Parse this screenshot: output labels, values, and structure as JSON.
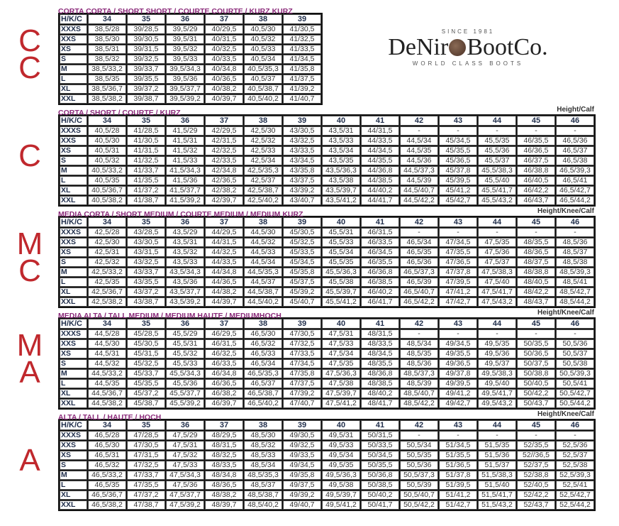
{
  "logo": {
    "since": "SINCE 1981",
    "brand_left": "DeNir",
    "brand_right": "BootCo.",
    "tagline": "WORLD CLASS BOOTS"
  },
  "side_labels": [
    {
      "letters": [
        "C",
        "C"
      ]
    },
    {
      "letters": [
        "C"
      ]
    },
    {
      "letters": [
        "M",
        "C"
      ]
    },
    {
      "letters": [
        "M",
        "A"
      ]
    },
    {
      "letters": [
        "A"
      ]
    }
  ],
  "colors": {
    "title": "#8b2a7a",
    "side_label": "#c0282d",
    "header": "#1f2d4a"
  },
  "tables": [
    {
      "title": "CORTA CORTA / SHORT SHORT / COURTE COURTE / KURZ KURZ",
      "unit": "",
      "corner": "H/K/C",
      "columns": [
        "34",
        "35",
        "36",
        "37",
        "38",
        "39"
      ],
      "rows": [
        {
          "label": "XXXS",
          "cells": [
            "38,5/28",
            "39/28,5",
            "39,5/29",
            "40/29,5",
            "40,5/30",
            "41/30,5"
          ]
        },
        {
          "label": "XXS",
          "cells": [
            "38,5/30",
            "39/30,5",
            "39,5/31",
            "40/31,5",
            "40,5/32",
            "41/32,5"
          ]
        },
        {
          "label": "XS",
          "cells": [
            "38,5/31",
            "39/31,5",
            "39,5/32",
            "40/32,5",
            "40,5/33",
            "41/33,5"
          ]
        },
        {
          "label": "S",
          "cells": [
            "38,5/32",
            "39/32,5",
            "39,5/33",
            "40/33,5",
            "40,5/34",
            "41/34,5"
          ]
        },
        {
          "label": "M",
          "cells": [
            "38,5/33,2",
            "39/33,7",
            "39,5/34,3",
            "40/34,8",
            "40,5/35,3",
            "41/35,8"
          ]
        },
        {
          "label": "L",
          "cells": [
            "38,5/35",
            "39/35,5",
            "39,5/36",
            "40/36,5",
            "40,5/37",
            "41/37,5"
          ]
        },
        {
          "label": "XL",
          "cells": [
            "38,5/36,7",
            "39/37,2",
            "39,5/37,7",
            "40/38,2",
            "40,5/38,7",
            "41/39,2"
          ]
        },
        {
          "label": "XXL",
          "cells": [
            "38,5/38,2",
            "39/38,7",
            "39,5/39,2",
            "40/39,7",
            "40,5/40,2",
            "41/40,7"
          ]
        }
      ]
    },
    {
      "title": "CORTA / SHORT / COURTE / KURZ",
      "unit": "Height/Calf",
      "corner": "H/K/C",
      "columns": [
        "34",
        "35",
        "36",
        "37",
        "38",
        "39",
        "40",
        "41",
        "42",
        "43",
        "44",
        "45",
        "46"
      ],
      "rows": [
        {
          "label": "XXXS",
          "cells": [
            "40,5/28",
            "41/28,5",
            "41,5/29",
            "42/29,5",
            "42,5/30",
            "43/30,5",
            "43,5/31",
            "44/31,5",
            "-",
            "-",
            "-",
            "-",
            "-"
          ]
        },
        {
          "label": "XXS",
          "cells": [
            "40,5/30",
            "41/30,5",
            "41,5/31",
            "42/31,5",
            "42,5/32",
            "43/32,5",
            "43,5/33",
            "44/33,5",
            "44,5/34",
            "45/34,5",
            "45,5/35",
            "46/35,5",
            "46,5/36"
          ]
        },
        {
          "label": "XS",
          "cells": [
            "40,5/31",
            "41/31,5",
            "41,5/32",
            "42/32,5",
            "42,5/33",
            "43/33,5",
            "43,5/34",
            "44/34,5",
            "44,5/35",
            "45/35,5",
            "45,5/36",
            "46/36,5",
            "46,5/37"
          ]
        },
        {
          "label": "S",
          "cells": [
            "40,5/32",
            "41/32,5",
            "41,5/33",
            "42/33,5",
            "42,5/34",
            "43/34,5",
            "43,5/35",
            "44/35,5",
            "44,5/36",
            "45/36,5",
            "45,5/37",
            "46/37,5",
            "46,5/38"
          ]
        },
        {
          "label": "M",
          "cells": [
            "40,5/33,2",
            "41/33,7",
            "41,5/34,3",
            "42/34,8",
            "42,5/35,3",
            "43/35,8",
            "43,5/36,3",
            "44/36,8",
            "44,5/37,3",
            "45/37,8",
            "45,5/38,3",
            "46/38,8",
            "46,5/39,3"
          ]
        },
        {
          "label": "L",
          "cells": [
            "40,5/35",
            "41/35,5",
            "41,5/36",
            "42/36,5",
            "42,5/37",
            "43/37,5",
            "43,5/38",
            "44/38,5",
            "44,5/39",
            "45/39,5",
            "45,5/40",
            "46/40,5",
            "46,5/41"
          ]
        },
        {
          "label": "XL",
          "cells": [
            "40,5/36,7",
            "41/37,2",
            "41,5/37,7",
            "42/38,2",
            "42,5/38,7",
            "43/39,2",
            "43,5/39,7",
            "44/40,2",
            "44,5/40,7",
            "45/41,2",
            "45,5/41,7",
            "46/42,2",
            "46,5/42,7"
          ]
        },
        {
          "label": "XXL",
          "cells": [
            "40,5/38,2",
            "41/38,7",
            "41,5/39,2",
            "42/39,7",
            "42,5/40,2",
            "43/40,7",
            "43,5/41,2",
            "44/41,7",
            "44,5/42,2",
            "45/42,7",
            "45,5/43,2",
            "46/43,7",
            "46,5/44,2"
          ]
        }
      ]
    },
    {
      "title": "MEDIA CORTA / SHORT MEDIUM / COURTE MEDIUM / MEDIUM KURZ",
      "unit": "Height/Knee/Calf",
      "corner": "H/K/C",
      "columns": [
        "34",
        "35",
        "36",
        "37",
        "38",
        "39",
        "40",
        "41",
        "42",
        "43",
        "44",
        "45",
        "46"
      ],
      "rows": [
        {
          "label": "XXXS",
          "cells": [
            "42,5/28",
            "43/28,5",
            "43,5/29",
            "44/29,5",
            "44,5/30",
            "45/30,5",
            "45,5/31",
            "46/31,5",
            "-",
            "-",
            "-",
            "-",
            "-"
          ]
        },
        {
          "label": "XXS",
          "cells": [
            "42,5/30",
            "43/30,5",
            "43,5/31",
            "44/31,5",
            "44,5/32",
            "45/32,5",
            "45,5/33",
            "46/33,5",
            "46,5/34",
            "47/34,5",
            "47,5/35",
            "48/35,5",
            "48,5/36"
          ]
        },
        {
          "label": "XS",
          "cells": [
            "42,5/31",
            "43/31,5",
            "43,5/32",
            "44/32,5",
            "44,5/33",
            "45/33,5",
            "45,5/34",
            "46/34,5",
            "46,5/35",
            "47/35,5",
            "47,5/36",
            "48/36,5",
            "48,5/37"
          ]
        },
        {
          "label": "S",
          "cells": [
            "42,5/32",
            "43/32,5",
            "43,5/33",
            "44/33,5",
            "44,5/34",
            "45/34,5",
            "45,5/35",
            "46/35,5",
            "46,5/36",
            "47/36,5",
            "47,5/37",
            "48/37,5",
            "48,5/38"
          ]
        },
        {
          "label": "M",
          "cells": [
            "42,5/33,2",
            "43/33,7",
            "43,5/34,3",
            "44/34,8",
            "44,5/35,3",
            "45/35,8",
            "45,5/36,3",
            "46/36,8",
            "46,5/37,3",
            "47/37,8",
            "47,5/38,3",
            "48/38,8",
            "48,5/39,3"
          ]
        },
        {
          "label": "L",
          "cells": [
            "42,5/35",
            "43/35,5",
            "43,5/36",
            "44/36,5",
            "44,5/37",
            "45/37,5",
            "45,5/38",
            "46/38,5",
            "46,5/39",
            "47/39,5",
            "47,5/40",
            "48/40,5",
            "48,5/41"
          ]
        },
        {
          "label": "XL",
          "cells": [
            "42,5/36,7",
            "43/37,2",
            "43,5/37,7",
            "44/38,2",
            "44,5/38,7",
            "45/39,2",
            "45,5/39,7",
            "46/40,2",
            "46,5/40,7",
            "47/41,2",
            "47,5/41,7",
            "48/42,2",
            "48,5/42,7"
          ]
        },
        {
          "label": "XXL",
          "cells": [
            "42,5/38,2",
            "43/38,7",
            "43,5/39,2",
            "44/39,7",
            "44,5/40,2",
            "45/40,7",
            "45,5/41,2",
            "46/41,7",
            "46,5/42,2",
            "47/42,7",
            "47,5/43,2",
            "48/43,7",
            "48,5/44,2"
          ]
        }
      ]
    },
    {
      "title": "MEDIA ALTA / TALL MEDIUM / MEDIUM HAUTE / MEDIUMHOCH",
      "unit": "Height/Knee/Calf",
      "corner": "H/K/C",
      "columns": [
        "34",
        "35",
        "36",
        "37",
        "38",
        "39",
        "40",
        "41",
        "42",
        "43",
        "44",
        "45",
        "46"
      ],
      "rows": [
        {
          "label": "XXXS",
          "cells": [
            "44,5/28",
            "45/28,5",
            "45,5/29",
            "46/29,5",
            "46,5/30",
            "47/30,5",
            "47,5/31",
            "48/31,5",
            "-",
            "-",
            "-",
            "-",
            "-"
          ]
        },
        {
          "label": "XXS",
          "cells": [
            "44,5/30",
            "45/30,5",
            "45,5/31",
            "46/31,5",
            "46,5/32",
            "47/32,5",
            "47,5/33",
            "48/33,5",
            "48,5/34",
            "49/34,5",
            "49,5/35",
            "50/35,5",
            "50,5/36"
          ]
        },
        {
          "label": "XS",
          "cells": [
            "44,5/31",
            "45/31,5",
            "45,5/32",
            "46/32,5",
            "46,5/33",
            "47/33,5",
            "47,5/34",
            "48/34,5",
            "48,5/35",
            "49/35,5",
            "49,5/36",
            "50/36,5",
            "50,5/37"
          ]
        },
        {
          "label": "S",
          "cells": [
            "44,5/32",
            "45/32,5",
            "45,5/33",
            "46/33,5",
            "46,5/34",
            "47/34,5",
            "47,5/35",
            "48/35,5",
            "48,5/36",
            "49/36,5",
            "49,5/37",
            "50/37,5",
            "50,5/38"
          ]
        },
        {
          "label": "M",
          "cells": [
            "44,5/33,2",
            "45/33,7",
            "45,5/34,3",
            "46/34,8",
            "46,5/35,3",
            "47/35,8",
            "47,5/36,3",
            "48/36,8",
            "48,5/37,3",
            "49/37,8",
            "49,5/38,3",
            "50/38,8",
            "50,5/39,3"
          ]
        },
        {
          "label": "L",
          "cells": [
            "44,5/35",
            "45/35,5",
            "45,5/36",
            "46/36,5",
            "46,5/37",
            "47/37,5",
            "47,5/38",
            "48/38,5",
            "48,5/39",
            "49/39,5",
            "49,5/40",
            "50/40,5",
            "50,5/41"
          ]
        },
        {
          "label": "XL",
          "cells": [
            "44,5/36,7",
            "45/37,2",
            "45,5/37,7",
            "46/38,2",
            "46,5/38,7",
            "47/39,2",
            "47,5/39,7",
            "48/40,2",
            "48,5/40,7",
            "49/41,2",
            "49,5/41,7",
            "50/42,2",
            "50,5/42,7"
          ]
        },
        {
          "label": "XXL",
          "cells": [
            "44,5/38,2",
            "45/38,7",
            "45,5/39,2",
            "46/39,7",
            "46,5/40,2",
            "47/40,7",
            "47,5/41,2",
            "48/41,7",
            "48,5/42,2",
            "49/42,7",
            "49,5/43,2",
            "50/43,7",
            "50,5/44,2"
          ]
        }
      ]
    },
    {
      "title": "ALTA / TALL / HAUTE / HOCH",
      "unit": "Height/Knee/Calf",
      "corner": "H/K/C",
      "columns": [
        "34",
        "35",
        "36",
        "37",
        "38",
        "39",
        "40",
        "41",
        "42",
        "43",
        "44",
        "45",
        "46"
      ],
      "rows": [
        {
          "label": "XXXS",
          "cells": [
            "46,5/28",
            "47/28,5",
            "47,5/29",
            "48/29,5",
            "48,5/30",
            "49/30,5",
            "49,5/31",
            "50/31,5",
            "-",
            "-",
            "-",
            "-",
            "-"
          ]
        },
        {
          "label": "XXS",
          "cells": [
            "46,5/30",
            "47/30,5",
            "47,5/31",
            "48/31,5",
            "48,5/32",
            "49/32,5",
            "49,5/33",
            "50/33,5",
            "50,5/34",
            "51/34,5",
            "51,5/35",
            "52/35,5",
            "52,5/36"
          ]
        },
        {
          "label": "XS",
          "cells": [
            "46,5/31",
            "47/31,5",
            "47,5/32",
            "48/32,5",
            "48,5/33",
            "49/33,5",
            "49,5/34",
            "50/34,5",
            "50,5/35",
            "51/35,5",
            "51,5/36",
            "52//36,5",
            "52,5/37"
          ]
        },
        {
          "label": "S",
          "cells": [
            "46,5/32",
            "47/32,5",
            "47,5/33",
            "48/33,5",
            "48,5/34",
            "49/34,5",
            "49,5/35",
            "50/35,5",
            "50,5/36",
            "51/36,5",
            "51,5/37",
            "52/37,5",
            "52,5/38"
          ]
        },
        {
          "label": "M",
          "cells": [
            "46,5/33,2",
            "47/33,7",
            "47,5/34,3",
            "48/34,8",
            "48,5/35,3",
            "49/35,8",
            "49,5/36,3",
            "50/36,8",
            "50,5/37,3",
            "51/37,8",
            "51,5/38,3",
            "52/38,8",
            "52,5/39,3"
          ]
        },
        {
          "label": "L",
          "cells": [
            "46,5/35",
            "47/35,5",
            "47,5/36",
            "48/36,5",
            "48,5/37",
            "49/37,5",
            "49,5/38",
            "50/38,5",
            "50,5/39",
            "51/39,5",
            "51,5/40",
            "52/40,5",
            "52,5/41"
          ]
        },
        {
          "label": "XL",
          "cells": [
            "46,5/36,7",
            "47/37,2",
            "47,5/37,7",
            "48/38,2",
            "48,5/38,7",
            "49/39,2",
            "49,5/39,7",
            "50/40,2",
            "50,5/40,7",
            "51/41,2",
            "51,5/41,7",
            "52/42,2",
            "52,5/42,7"
          ]
        },
        {
          "label": "XXL",
          "cells": [
            "46,5/38,2",
            "47/38,7",
            "47,5/39,2",
            "48/39,7",
            "48,5/40,2",
            "49/40,7",
            "49,5/41,2",
            "50/41,7",
            "50,5/42,2",
            "51/42,7",
            "51,5/43,2",
            "52/43,7",
            "52,5/44,2"
          ]
        }
      ]
    }
  ]
}
